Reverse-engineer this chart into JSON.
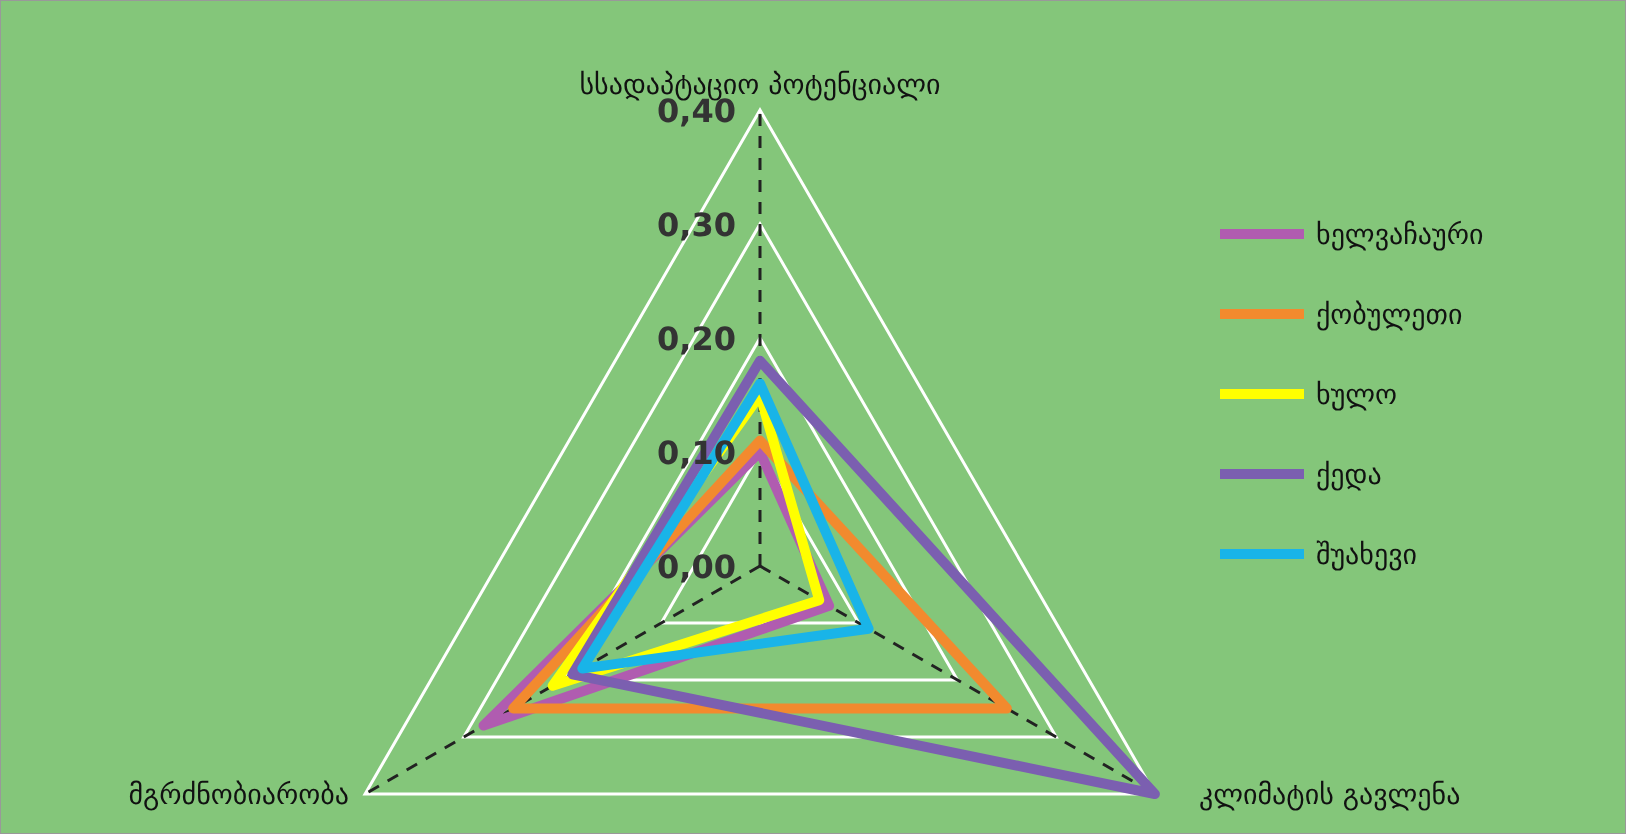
{
  "chart_data": {
    "type": "radar",
    "categories": [
      "სსადაპტაციო პოტენციალი",
      "კლიმატის გავლენა",
      "მგრძნობიარობა"
    ],
    "series": [
      {
        "name": "ხელვაჩაური",
        "color": "#b05cb0",
        "values": [
          0.1,
          0.07,
          0.28
        ]
      },
      {
        "name": "ქობულეთი",
        "color": "#f28a2e",
        "values": [
          0.11,
          0.25,
          0.25
        ]
      },
      {
        "name": "ხულო",
        "color": "#ffff00",
        "values": [
          0.15,
          0.06,
          0.21
        ]
      },
      {
        "name": "ქედა",
        "color": "#7b5fb0",
        "values": [
          0.18,
          0.4,
          0.19
        ]
      },
      {
        "name": "შუახევი",
        "color": "#19b4e8",
        "values": [
          0.16,
          0.11,
          0.18
        ]
      }
    ],
    "ylim": [
      0,
      0.4
    ],
    "yticks": [
      {
        "value": 0,
        "label": "0,00"
      },
      {
        "value": 0.1,
        "label": "0,10"
      },
      {
        "value": 0.2,
        "label": "0,20"
      },
      {
        "value": 0.3,
        "label": "0,30"
      },
      {
        "value": 0.4,
        "label": "0,40"
      }
    ],
    "grid": true,
    "legend": "right"
  }
}
